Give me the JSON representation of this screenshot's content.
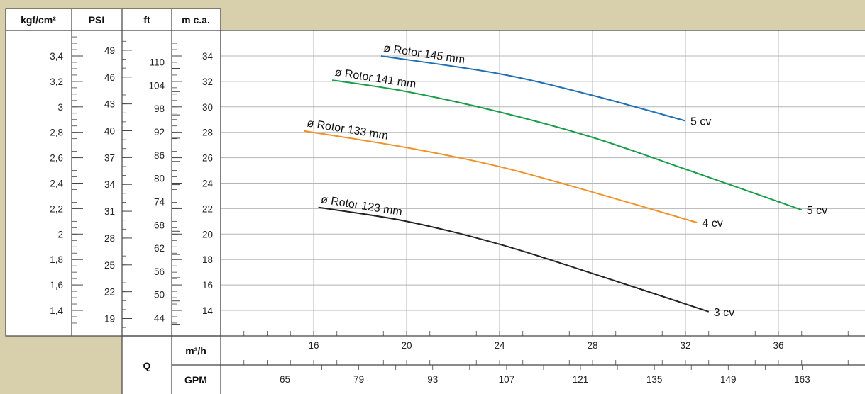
{
  "headers": {
    "kgf": "kgf/cm²",
    "psi": "PSI",
    "ft": "ft",
    "mca": "m c.a.",
    "q": "Q",
    "m3h": "m³/h",
    "gpm": "GPM"
  },
  "scales": {
    "kgf": [
      "3,4",
      "3,2",
      "3",
      "2,8",
      "2,6",
      "2,4",
      "2,2",
      "2",
      "1,8",
      "1,6",
      "1,4"
    ],
    "psi": [
      "49",
      "46",
      "43",
      "40",
      "37",
      "34",
      "31",
      "28",
      "25",
      "22",
      "19"
    ],
    "ft": [
      "110",
      "104",
      "98",
      "92",
      "86",
      "80",
      "74",
      "68",
      "62",
      "56",
      "50",
      "44"
    ],
    "gpm": [
      "65",
      "79",
      "93",
      "107",
      "121",
      "135",
      "149",
      "163"
    ]
  },
  "chart_data": {
    "type": "line",
    "xlabel": "m³/h",
    "ylabel": "m c.a.",
    "xlim": [
      16,
      39.5
    ],
    "ylim": [
      14,
      35.5
    ],
    "x_ticks": [
      16,
      20,
      24,
      28,
      32,
      36
    ],
    "y_ticks": [
      14,
      16,
      18,
      20,
      22,
      24,
      26,
      28,
      30,
      32,
      34
    ],
    "grid": true,
    "series": [
      {
        "name": "ø Rotor 145 mm",
        "power": "5 cv",
        "color": "#1f6fb2",
        "points": [
          [
            18.9,
            34.0
          ],
          [
            24.0,
            32.6
          ],
          [
            28.0,
            30.9
          ],
          [
            32.0,
            28.9
          ]
        ]
      },
      {
        "name": "ø Rotor 141 mm",
        "power": "5 cv",
        "color": "#1a9c4a",
        "points": [
          [
            16.8,
            32.1
          ],
          [
            20.0,
            31.2
          ],
          [
            24.0,
            29.6
          ],
          [
            28.0,
            27.6
          ],
          [
            32.0,
            25.1
          ],
          [
            37.0,
            21.9
          ]
        ]
      },
      {
        "name": "ø Rotor 133 mm",
        "power": "4 cv",
        "color": "#f0922a",
        "points": [
          [
            15.6,
            28.1
          ],
          [
            20.0,
            26.8
          ],
          [
            24.0,
            25.3
          ],
          [
            28.0,
            23.3
          ],
          [
            32.5,
            20.9
          ]
        ]
      },
      {
        "name": "ø Rotor 123 mm",
        "power": "3 cv",
        "color": "#222222",
        "points": [
          [
            16.2,
            22.1
          ],
          [
            20.0,
            21.0
          ],
          [
            24.0,
            19.2
          ],
          [
            28.0,
            16.9
          ],
          [
            33.0,
            13.9
          ]
        ]
      }
    ]
  }
}
